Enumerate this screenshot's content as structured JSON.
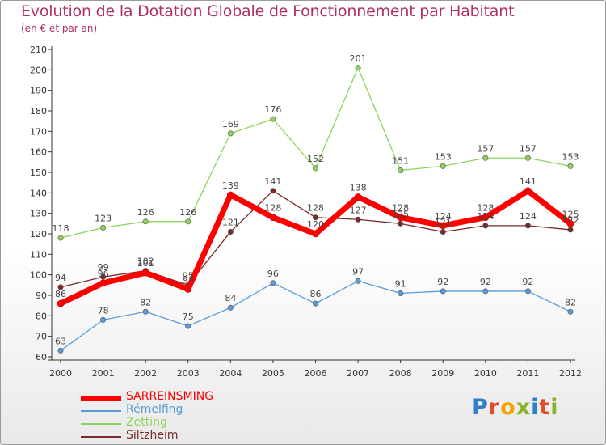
{
  "title": "Evolution de la Dotation Globale de Fonctionnement par Habitant",
  "subtitle": "(en € et par an)",
  "logo_text": "Proxiti",
  "chart_data": {
    "type": "line",
    "title": "Evolution de la Dotation Globale de Fonctionnement par Habitant",
    "subtitle": "(en € et par an)",
    "xlabel": "",
    "ylabel": "",
    "ylim": [
      60,
      210
    ],
    "ytick_step": 10,
    "grid": false,
    "legend_position": "bottom-left",
    "categories": [
      "2000",
      "2001",
      "2002",
      "2003",
      "2004",
      "2005",
      "2006",
      "2007",
      "2008",
      "2009",
      "2010",
      "2011",
      "2012"
    ],
    "series": [
      {
        "name": "SARREINSMING",
        "color": "#ff0000",
        "values": [
          86,
          96,
          101,
          93,
          139,
          128,
          120,
          138,
          128,
          124,
          128,
          141,
          125
        ]
      },
      {
        "name": "Rémelfing",
        "color": "#5b9bd5",
        "values": [
          63,
          78,
          82,
          75,
          84,
          96,
          86,
          97,
          91,
          92,
          92,
          92,
          82
        ]
      },
      {
        "name": "Zetting",
        "color": "#8fd35a",
        "values": [
          118,
          123,
          126,
          126,
          169,
          176,
          152,
          201,
          151,
          153,
          157,
          157,
          153
        ]
      },
      {
        "name": "Siltzheim",
        "color": "#7b2a2a",
        "values": [
          94,
          99,
          102,
          95,
          121,
          141,
          128,
          127,
          125,
          121,
          124,
          124,
          122
        ]
      }
    ]
  }
}
